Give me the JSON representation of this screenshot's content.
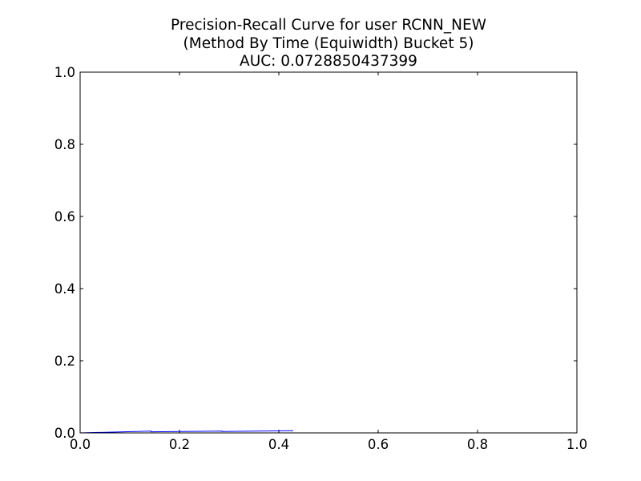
{
  "chart_data": {
    "type": "line",
    "title_lines": [
      "Precision-Recall Curve for user RCNN_NEW",
      "(Method By Time (Equiwidth) Bucket 5)",
      "AUC: 0.0728850437399"
    ],
    "xlabel": "",
    "ylabel": "",
    "xlim": [
      0.0,
      1.0
    ],
    "ylim": [
      0.0,
      1.0
    ],
    "grid": false,
    "x_ticks": [
      "0.0",
      "0.2",
      "0.4",
      "0.6",
      "0.8",
      "1.0"
    ],
    "y_ticks": [
      "0.0",
      "0.2",
      "0.4",
      "0.6",
      "0.8",
      "1.0"
    ],
    "series": [
      {
        "color": "#0000ff",
        "x": [
          0.0,
          0.143,
          0.143,
          0.286,
          0.286,
          0.429,
          0.429
        ],
        "y": [
          0.0,
          0.005,
          0.003,
          0.005,
          0.004,
          0.006,
          0.006
        ]
      }
    ]
  }
}
